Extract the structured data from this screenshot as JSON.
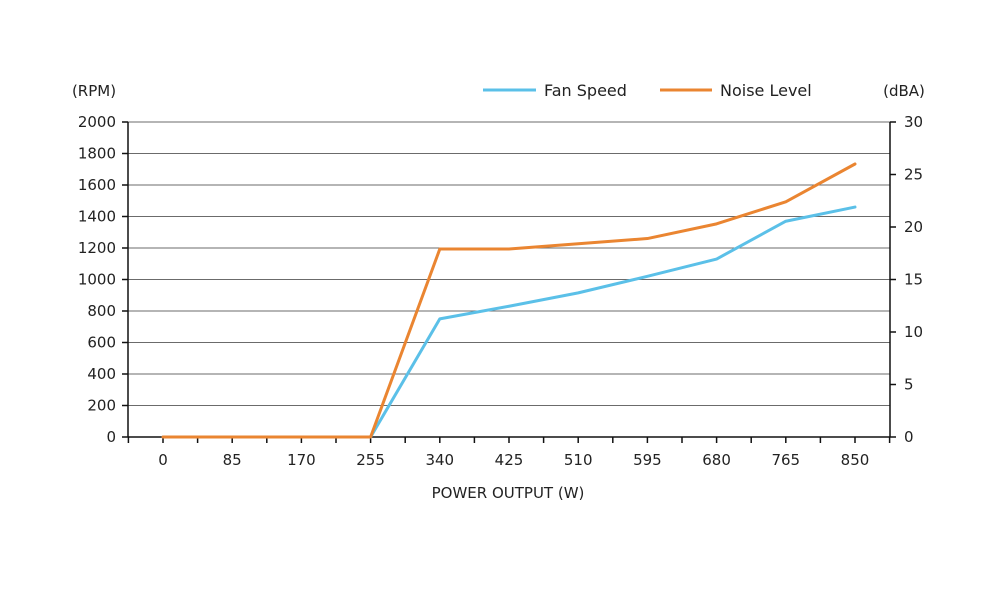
{
  "chart_data": {
    "type": "line",
    "title": "",
    "xlabel": "POWER OUTPUT (W)",
    "ylabel_left": "(RPM)",
    "ylabel_right": "(dBA)",
    "x": [
      0,
      85,
      170,
      255,
      340,
      425,
      510,
      595,
      680,
      765,
      850
    ],
    "x_tick_labels": [
      "0",
      "85",
      "170",
      "255",
      "340",
      "425",
      "510",
      "595",
      "680",
      "765",
      "850"
    ],
    "ylim_left": [
      0,
      2000
    ],
    "ylim_right": [
      0,
      30
    ],
    "y_left_ticks": [
      "0",
      "200",
      "400",
      "600",
      "800",
      "1000",
      "1200",
      "1400",
      "1600",
      "1800",
      "2000"
    ],
    "y_right_ticks": [
      "0",
      "5",
      "10",
      "15",
      "20",
      "25",
      "30"
    ],
    "grid": true,
    "legend_position": "top-right",
    "series": [
      {
        "name": "Fan Speed",
        "axis": "left",
        "color": "#5bc0e8",
        "values": [
          0,
          0,
          0,
          0,
          750,
          830,
          915,
          1020,
          1130,
          1370,
          1460
        ]
      },
      {
        "name": "Noise Level",
        "axis": "right",
        "color": "#ea8531",
        "values": [
          0,
          0,
          0,
          0,
          17.9,
          17.9,
          18.4,
          18.9,
          20.3,
          22.4,
          26.0
        ]
      }
    ]
  }
}
